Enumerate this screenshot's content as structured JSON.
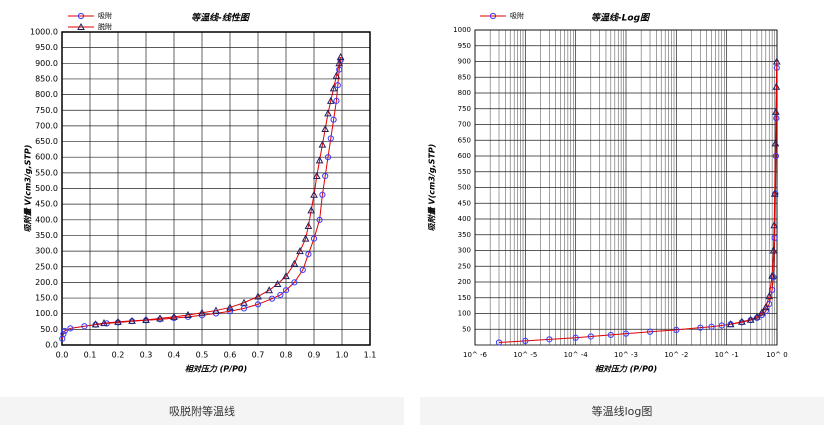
{
  "chart_data": [
    {
      "type": "scatter-line",
      "title": "等温线-线性图",
      "xlabel": "相对压力 (P/P0)",
      "ylabel": "吸附量 V(cm3/g,STP)",
      "xlim": [
        0,
        1.1
      ],
      "xticks": [
        {
          "value": 0,
          "label": "0.0"
        },
        0.1,
        0.2,
        0.3,
        0.4,
        0.5,
        0.6,
        0.7,
        0.8,
        0.9,
        {
          "value": 1,
          "label": "1.0"
        },
        1.1
      ],
      "ylim": [
        0,
        1000
      ],
      "yticks": [
        {
          "value": 0,
          "label": "0.0"
        },
        {
          "value": 50,
          "label": "50.0"
        },
        {
          "value": 100,
          "label": "100.0"
        },
        {
          "value": 150,
          "label": "150.0"
        },
        {
          "value": 200,
          "label": "200.0"
        },
        {
          "value": 250,
          "label": "250.0"
        },
        {
          "value": 300,
          "label": "300.0"
        },
        {
          "value": 350,
          "label": "350.0"
        },
        {
          "value": 400,
          "label": "400.0"
        },
        {
          "value": 450,
          "label": "450.0"
        },
        {
          "value": 500,
          "label": "500.0"
        },
        {
          "value": 550,
          "label": "550.0"
        },
        {
          "value": 600,
          "label": "600.0"
        },
        {
          "value": 650,
          "label": "650.0"
        },
        {
          "value": 700,
          "label": "700.0"
        },
        {
          "value": 750,
          "label": "750.0"
        },
        {
          "value": 800,
          "label": "800.0"
        },
        {
          "value": 850,
          "label": "850.0"
        },
        {
          "value": 900,
          "label": "900.0"
        },
        {
          "value": 950,
          "label": "950.0"
        },
        {
          "value": 1000,
          "label": "1000.0"
        }
      ],
      "grid": true,
      "series": [
        {
          "name": "吸附",
          "color": "#e00000",
          "marker": "circle",
          "marker_color": "#3a3aff",
          "x": [
            0.001,
            0.005,
            0.01,
            0.03,
            0.08,
            0.12,
            0.16,
            0.2,
            0.25,
            0.3,
            0.35,
            0.4,
            0.45,
            0.5,
            0.55,
            0.6,
            0.65,
            0.7,
            0.75,
            0.78,
            0.8,
            0.83,
            0.86,
            0.88,
            0.9,
            0.92,
            0.93,
            0.94,
            0.95,
            0.96,
            0.97,
            0.98,
            0.985,
            0.99,
            0.995
          ],
          "values": [
            20,
            35,
            45,
            53,
            60,
            65,
            69,
            72,
            76,
            79,
            82,
            86,
            90,
            95,
            101,
            108,
            117,
            130,
            148,
            160,
            175,
            200,
            240,
            290,
            340,
            400,
            480,
            540,
            600,
            660,
            720,
            780,
            830,
            880,
            910
          ]
        },
        {
          "name": "脱附",
          "color": "#e00000",
          "marker": "triangle",
          "marker_color": "#202060",
          "x": [
            0.995,
            0.99,
            0.98,
            0.97,
            0.96,
            0.95,
            0.94,
            0.93,
            0.92,
            0.91,
            0.9,
            0.89,
            0.88,
            0.87,
            0.85,
            0.83,
            0.8,
            0.77,
            0.74,
            0.7,
            0.65,
            0.6,
            0.55,
            0.5,
            0.45,
            0.4,
            0.35,
            0.3,
            0.25,
            0.2,
            0.15,
            0.12
          ],
          "values": [
            920,
            900,
            860,
            820,
            780,
            740,
            690,
            640,
            590,
            540,
            480,
            430,
            380,
            340,
            300,
            260,
            220,
            195,
            175,
            155,
            135,
            120,
            110,
            103,
            96,
            90,
            85,
            80,
            77,
            74,
            70,
            66
          ]
        }
      ]
    },
    {
      "type": "scatter-line",
      "title": "等温线-Log图",
      "xlabel": "相对压力 (P/P0)",
      "ylabel": "吸附量 V(cm3/g,STP)",
      "xscale": "log",
      "xlim": [
        1e-06,
        1
      ],
      "xticks": [
        {
          "value": 1e-06,
          "label": "10^ -6"
        },
        {
          "value": 1e-05,
          "label": "10^ -5"
        },
        {
          "value": 0.0001,
          "label": "10^ -4"
        },
        {
          "value": 0.001,
          "label": "10^ -3"
        },
        {
          "value": 0.01,
          "label": "10^ -2"
        },
        {
          "value": 0.1,
          "label": "10^ -1"
        },
        {
          "value": 1,
          "label": "10^ 0"
        }
      ],
      "ylim": [
        0,
        1000
      ],
      "yticks": [
        50,
        100,
        150,
        200,
        250,
        300,
        350,
        400,
        450,
        500,
        550,
        600,
        650,
        700,
        750,
        800,
        850,
        900,
        950,
        1000
      ],
      "grid": true,
      "minor_grid": true,
      "series": [
        {
          "name": "吸附",
          "color": "#e00000",
          "marker": "circle",
          "marker_color": "#3a3aff",
          "x": [
            3e-06,
            1e-05,
            3e-05,
            0.0001,
            0.0002,
            0.0005,
            0.001,
            0.003,
            0.01,
            0.03,
            0.05,
            0.08,
            0.12,
            0.2,
            0.3,
            0.4,
            0.5,
            0.6,
            0.7,
            0.8,
            0.85,
            0.9,
            0.93,
            0.95,
            0.97,
            0.99
          ],
          "values": [
            8,
            13,
            18,
            23,
            27,
            32,
            36,
            42,
            48,
            55,
            58,
            62,
            66,
            72,
            79,
            86,
            95,
            108,
            130,
            175,
            215,
            340,
            480,
            600,
            720,
            880
          ]
        },
        {
          "color": "#e00000",
          "marker": "triangle",
          "marker_color": "#202060",
          "x": [
            0.99,
            0.97,
            0.95,
            0.93,
            0.9,
            0.88,
            0.85,
            0.8,
            0.7,
            0.6,
            0.5,
            0.4,
            0.3,
            0.2,
            0.12
          ],
          "values": [
            900,
            820,
            740,
            640,
            480,
            380,
            300,
            220,
            155,
            120,
            103,
            90,
            80,
            74,
            66
          ]
        }
      ]
    }
  ],
  "captions": [
    "吸脱附等温线",
    "等温线log图"
  ]
}
